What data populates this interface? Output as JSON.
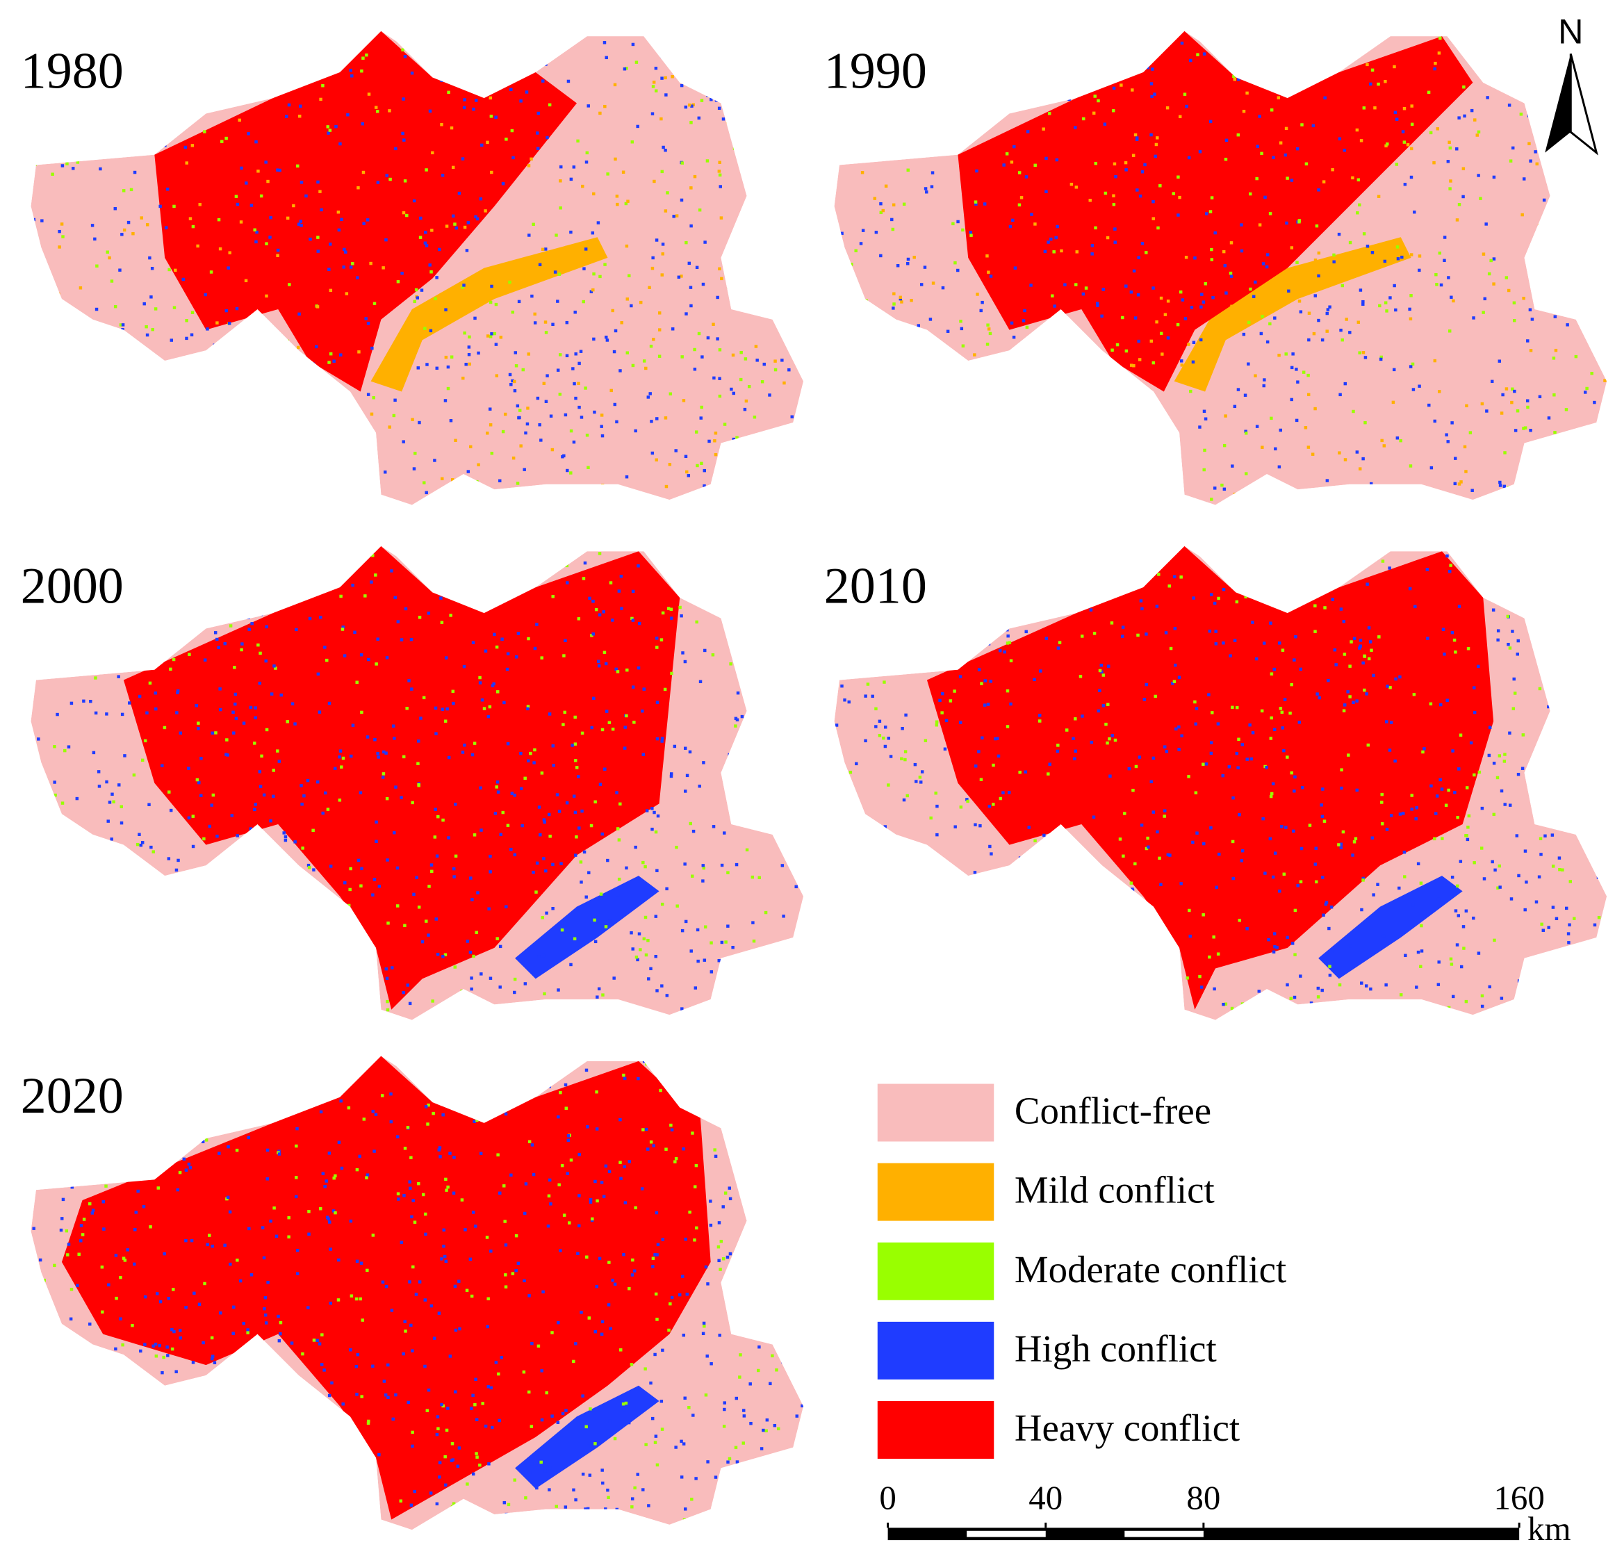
{
  "panels": [
    {
      "year": "1980"
    },
    {
      "year": "1990"
    },
    {
      "year": "2000"
    },
    {
      "year": "2010"
    },
    {
      "year": "2020"
    }
  ],
  "legend": [
    {
      "label": "Conflict-free",
      "color": "#f9bcbc"
    },
    {
      "label": "Mild conflict",
      "color": "#ffb000"
    },
    {
      "label": "Moderate conflict",
      "color": "#99ff00"
    },
    {
      "label": "High conflict",
      "color": "#1f3cff"
    },
    {
      "label": "Heavy conflict",
      "color": "#ff0000"
    }
  ],
  "scale_bar": {
    "ticks": [
      0,
      40,
      80,
      160
    ],
    "unit": "km"
  },
  "north": "N"
}
